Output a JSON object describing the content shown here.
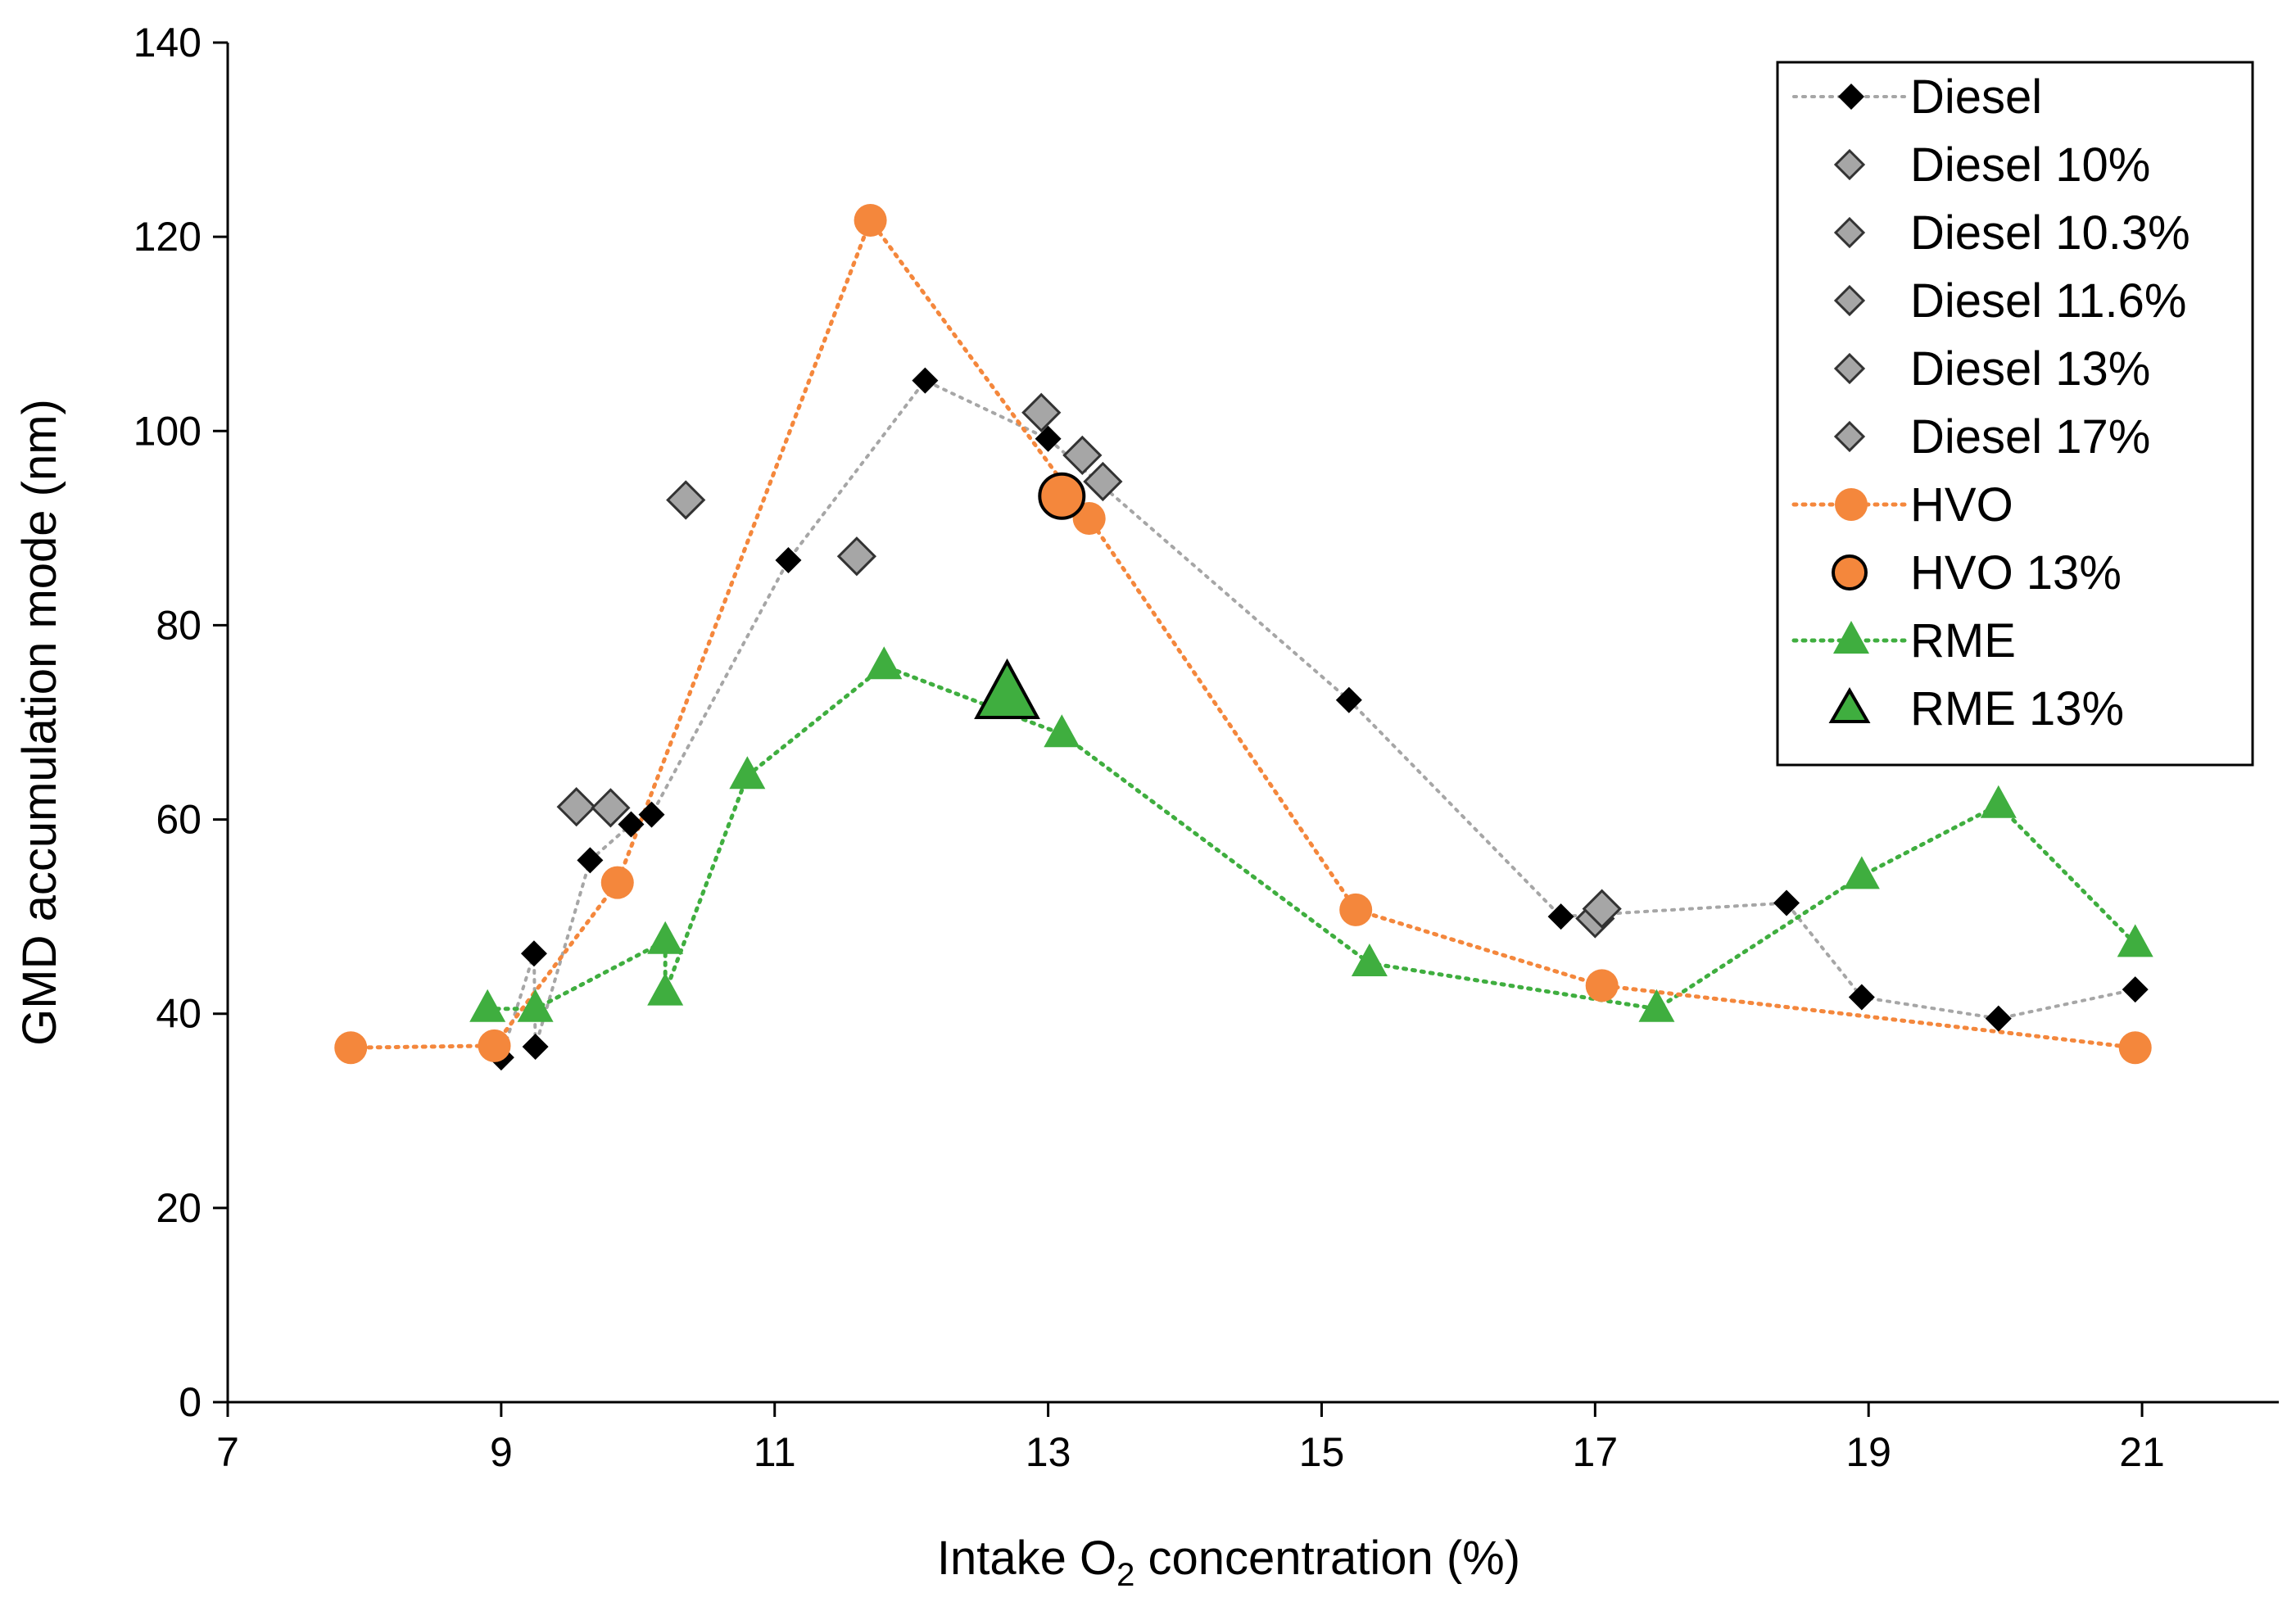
{
  "chart_data": {
    "type": "scatter",
    "title": "",
    "xlabel": {
      "prefix": "Intake O",
      "subscript": "2",
      "suffix": " concentration (%)"
    },
    "ylabel": "GMD accumulation mode (nm)",
    "xlim": [
      7,
      22
    ],
    "ylim": [
      0,
      140
    ],
    "xticks": [
      7,
      9,
      11,
      13,
      15,
      17,
      19,
      21
    ],
    "yticks": [
      0,
      20,
      40,
      60,
      80,
      100,
      120,
      140
    ],
    "grid": false,
    "legend_position": "top-right",
    "series": [
      {
        "name": "Diesel",
        "marker": "diamond",
        "fill": "#000000",
        "line_color": "#A6A6A6",
        "connected": true,
        "size": "normal",
        "points": [
          [
            9.0,
            35.5
          ],
          [
            9.24,
            46.2
          ],
          [
            9.25,
            36.6
          ],
          [
            9.65,
            55.8
          ],
          [
            9.95,
            59.5
          ],
          [
            10.1,
            60.5
          ],
          [
            11.1,
            86.7
          ],
          [
            12.1,
            105.2
          ],
          [
            13.0,
            99.2
          ],
          [
            15.2,
            72.3
          ],
          [
            16.75,
            50.0
          ],
          [
            18.4,
            51.4
          ],
          [
            18.95,
            41.7
          ],
          [
            19.95,
            39.5
          ],
          [
            20.95,
            42.5
          ]
        ]
      },
      {
        "name": "Diesel 10%",
        "marker": "diamond",
        "fill": "#A6A6A6",
        "line_color": "",
        "connected": false,
        "size": "large",
        "points": [
          [
            9.55,
            61.3
          ],
          [
            9.8,
            61.2
          ]
        ]
      },
      {
        "name": "Diesel 10.3%",
        "marker": "diamond",
        "fill": "#A6A6A6",
        "line_color": "",
        "connected": false,
        "size": "large",
        "points": [
          [
            10.35,
            92.9
          ]
        ]
      },
      {
        "name": "Diesel 11.6%",
        "marker": "diamond",
        "fill": "#A6A6A6",
        "line_color": "",
        "connected": false,
        "size": "large",
        "points": [
          [
            11.6,
            87.1
          ]
        ]
      },
      {
        "name": "Diesel 13%",
        "marker": "diamond",
        "fill": "#A6A6A6",
        "line_color": "",
        "connected": false,
        "size": "large",
        "points": [
          [
            12.95,
            101.9
          ],
          [
            13.25,
            97.5
          ],
          [
            13.4,
            94.8
          ]
        ]
      },
      {
        "name": "Diesel 17%",
        "marker": "diamond",
        "fill": "#A6A6A6",
        "line_color": "",
        "connected": false,
        "size": "large",
        "points": [
          [
            17.0,
            49.8
          ],
          [
            17.05,
            50.8
          ]
        ]
      },
      {
        "name": "HVO",
        "marker": "circle",
        "fill": "#F4873C",
        "line_color": "#F4873C",
        "connected": true,
        "size": "normal",
        "points": [
          [
            7.9,
            36.5
          ],
          [
            8.95,
            36.7
          ],
          [
            9.85,
            53.5
          ],
          [
            11.7,
            121.7
          ],
          [
            13.3,
            91.0
          ],
          [
            15.25,
            50.7
          ],
          [
            17.05,
            42.9
          ],
          [
            20.95,
            36.5
          ]
        ]
      },
      {
        "name": "HVO 13%",
        "marker": "circle",
        "fill": "#F4873C",
        "line_color": "",
        "connected": false,
        "size": "large",
        "points": [
          [
            13.1,
            93.3
          ]
        ]
      },
      {
        "name": "RME",
        "marker": "triangle",
        "fill": "#3FAE3F",
        "line_color": "#3FAE3F",
        "connected": true,
        "size": "normal",
        "points": [
          [
            8.9,
            40.5
          ],
          [
            9.25,
            40.5
          ],
          [
            10.2,
            47.5
          ],
          [
            10.2,
            42.2
          ],
          [
            10.8,
            64.5
          ],
          [
            11.8,
            75.8
          ],
          [
            13.1,
            68.8
          ],
          [
            15.35,
            45.2
          ],
          [
            17.45,
            40.5
          ],
          [
            18.95,
            54.2
          ],
          [
            19.95,
            61.5
          ],
          [
            20.95,
            47.2
          ]
        ]
      },
      {
        "name": "RME 13%",
        "marker": "triangle",
        "fill": "#3FAE3F",
        "line_color": "",
        "connected": false,
        "size": "large",
        "points": [
          [
            12.7,
            72.8
          ]
        ]
      }
    ]
  }
}
